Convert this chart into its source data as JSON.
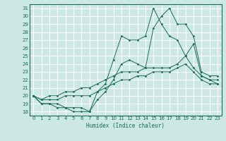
{
  "xlabel": "Humidex (Indice chaleur)",
  "bg_color": "#cce8e5",
  "line_color": "#1a6b5a",
  "grid_color": "#ffffff",
  "xlim": [
    -0.5,
    23.5
  ],
  "ylim": [
    17.5,
    31.5
  ],
  "xticks": [
    0,
    1,
    2,
    3,
    4,
    5,
    6,
    7,
    8,
    9,
    10,
    11,
    12,
    13,
    14,
    15,
    16,
    17,
    18,
    19,
    20,
    21,
    22,
    23
  ],
  "yticks": [
    18,
    19,
    20,
    21,
    22,
    23,
    24,
    25,
    26,
    27,
    28,
    29,
    30,
    31
  ],
  "series": [
    {
      "x": [
        0,
        1,
        2,
        3,
        4,
        5,
        6,
        7,
        8,
        9,
        10,
        11,
        12,
        13,
        14,
        15,
        16,
        17,
        18,
        19,
        20,
        21,
        22,
        23
      ],
      "y": [
        20,
        19,
        19,
        18.5,
        18.5,
        18,
        18,
        18,
        20.5,
        21.5,
        24.5,
        27.5,
        27,
        27,
        27.5,
        31,
        29,
        27.5,
        27,
        25,
        26.5,
        22.5,
        22,
        22
      ]
    },
    {
      "x": [
        0,
        1,
        2,
        3,
        4,
        5,
        6,
        7,
        8,
        9,
        10,
        11,
        12,
        13,
        14,
        15,
        16,
        17,
        18,
        19,
        20,
        21,
        22,
        23
      ],
      "y": [
        20,
        19,
        19,
        19,
        18.5,
        18.5,
        18.5,
        18,
        19.5,
        20.5,
        22,
        24,
        24.5,
        24,
        23.5,
        28.5,
        30,
        31,
        29,
        29,
        27.5,
        23,
        22.5,
        22.5
      ]
    },
    {
      "x": [
        0,
        1,
        2,
        3,
        4,
        5,
        6,
        7,
        8,
        9,
        10,
        11,
        12,
        13,
        14,
        15,
        16,
        17,
        18,
        19,
        20,
        21,
        22,
        23
      ],
      "y": [
        20,
        19.5,
        20,
        20,
        20.5,
        20.5,
        21,
        21,
        21.5,
        22,
        22.5,
        23,
        23,
        23,
        23.5,
        23.5,
        23.5,
        23.5,
        24,
        25,
        23.5,
        22.5,
        22,
        21.5
      ]
    },
    {
      "x": [
        0,
        1,
        2,
        3,
        4,
        5,
        6,
        7,
        8,
        9,
        10,
        11,
        12,
        13,
        14,
        15,
        16,
        17,
        18,
        19,
        20,
        21,
        22,
        23
      ],
      "y": [
        20,
        19.5,
        19.5,
        19.5,
        20,
        20,
        20,
        20,
        20.5,
        21,
        21.5,
        22,
        22,
        22.5,
        22.5,
        23,
        23,
        23,
        23.5,
        24,
        23,
        22,
        21.5,
        21.5
      ]
    }
  ]
}
